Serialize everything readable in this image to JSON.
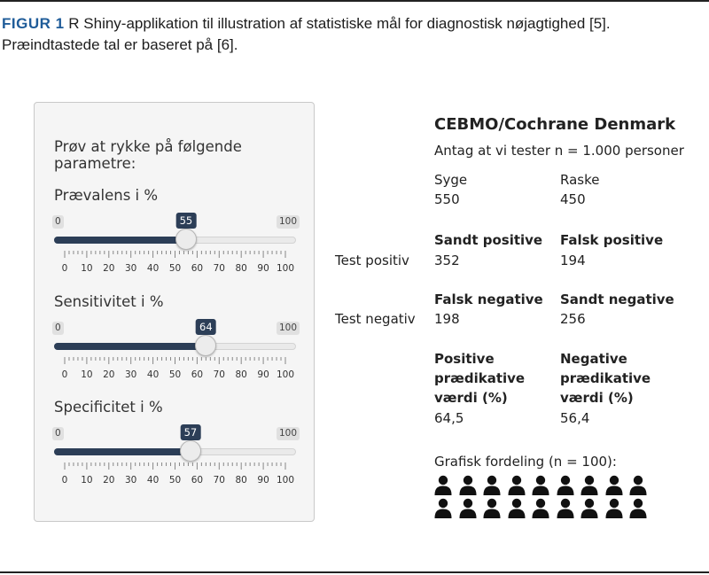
{
  "caption": {
    "label": "FIGUR 1",
    "text": " R Shiny-applikation til illustration af statistiske mål for diagnostisk nøjagtighed [5]. Præindtastede tal er baseret på [6]."
  },
  "panel": {
    "heading": "Prøv at rykke på følgende parametre:",
    "sliders": [
      {
        "label": "Prævalens i %",
        "min": "0",
        "max": "100",
        "value": 55
      },
      {
        "label": "Sensitivitet i %",
        "min": "0",
        "max": "100",
        "value": 64
      },
      {
        "label": "Specificitet i %",
        "min": "0",
        "max": "100",
        "value": 57
      }
    ],
    "tick_labels": [
      "0",
      "10",
      "20",
      "30",
      "40",
      "50",
      "60",
      "70",
      "80",
      "90",
      "100"
    ]
  },
  "results": {
    "title": "CEBMO/Cochrane Denmark",
    "subtitle": "Antag at vi tester n = 1.000 personer",
    "sick_label": "Syge",
    "sick_value": "550",
    "healthy_label": "Raske",
    "healthy_value": "450",
    "tp_label": "Sandt positive",
    "fp_label": "Falsk positive",
    "test_pos_label": "Test positiv",
    "tp_value": "352",
    "fp_value": "194",
    "fn_label": "Falsk negative",
    "tn_label": "Sandt negative",
    "test_neg_label": "Test negativ",
    "fn_value": "198",
    "tn_value": "256",
    "ppv_label_1": "Positive",
    "ppv_label_2": "prædikative",
    "ppv_label_3": "værdi (%)",
    "npv_label_1": "Negative",
    "npv_label_2": "prædikative",
    "npv_label_3": "værdi (%)",
    "ppv_value": "64,5",
    "npv_value": "56,4",
    "graphic_label": "Grafisk fordeling (n = 100):",
    "person_icon": "person-icon",
    "person_color": "#111111",
    "person_count_visible": 18
  },
  "colors": {
    "accent": "#1f5c99",
    "slider_fill": "#2c3e57"
  }
}
